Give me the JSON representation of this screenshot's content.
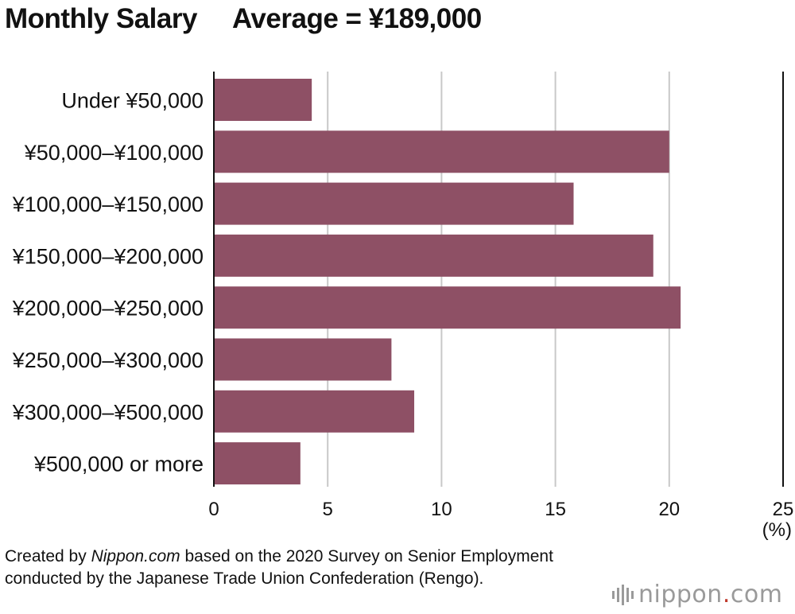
{
  "chart_data": {
    "type": "bar",
    "orientation": "horizontal",
    "title": "Monthly Salary",
    "subtitle": "Average = ¥189,000",
    "categories": [
      "Under ¥50,000",
      "¥50,000–¥100,000",
      "¥100,000–¥150,000",
      "¥150,000–¥200,000",
      "¥200,000–¥250,000",
      "¥250,000–¥300,000",
      "¥300,000–¥500,000",
      "¥500,000 or more"
    ],
    "values": [
      4.3,
      20.0,
      15.8,
      19.3,
      20.5,
      7.8,
      8.8,
      3.8
    ],
    "xlim": [
      0,
      25
    ],
    "xticks": [
      "0",
      "5",
      "10",
      "15",
      "20",
      "25"
    ],
    "xunit": "(%)",
    "grid": true,
    "bar_color": "#8e5065",
    "grid_color": "#c8c8c8"
  },
  "footer": {
    "prefix": "Created by ",
    "source_name": "Nippon.com",
    "suffix": " based on the 2020 Survey on Senior Employment conducted by the Japanese Trade Union Confederation (Rengo)."
  },
  "logo": {
    "text_main": "nippon",
    "text_dot": ".",
    "text_end": "com",
    "icon": "sound-wave-icon"
  }
}
